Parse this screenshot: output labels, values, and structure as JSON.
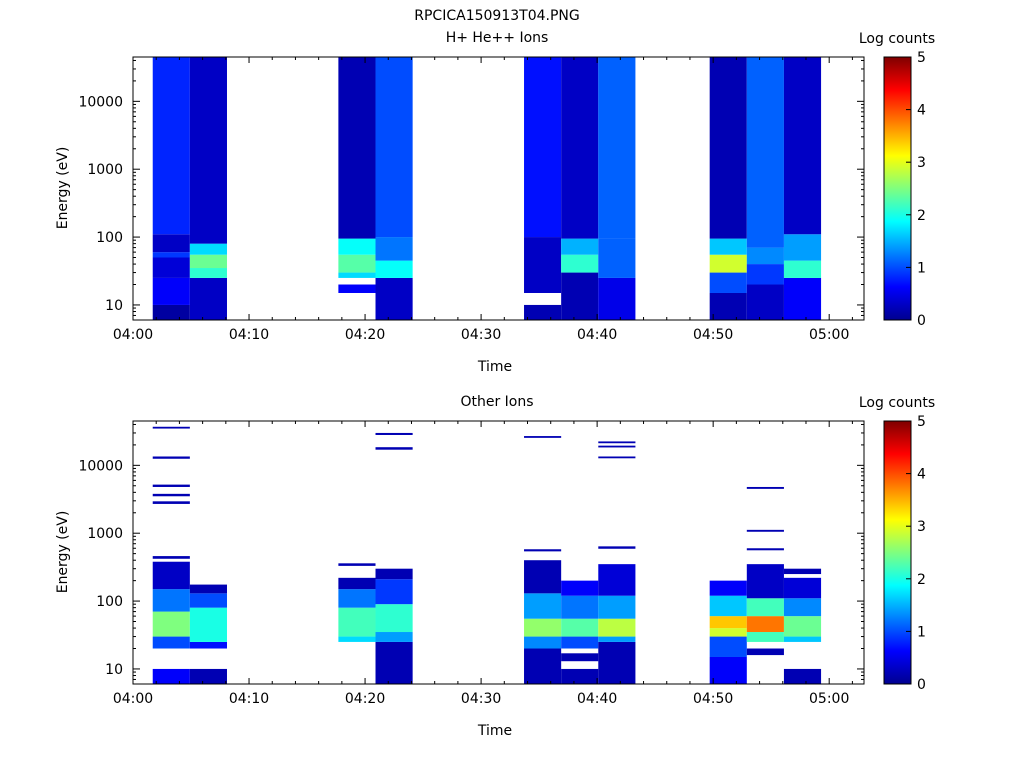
{
  "figure_title": "RPCICA150913T04.PNG",
  "colorscale": {
    "stops": [
      "#00008f",
      "#0000ff",
      "#007fff",
      "#00ffff",
      "#7fff7f",
      "#ffff00",
      "#ff7f00",
      "#ff0000",
      "#7f0000"
    ]
  },
  "chart_data": [
    {
      "type": "heatmap",
      "title": "H+ He++ Ions",
      "xlabel": "Time",
      "ylabel": "Energy (eV)",
      "y_scale": "log",
      "xlim": [
        "04:00",
        "05:03"
      ],
      "ylim": [
        6,
        45000
      ],
      "x_ticks": [
        "04:00",
        "04:10",
        "04:20",
        "04:30",
        "04:40",
        "04:50",
        "05:00"
      ],
      "y_ticks": [
        "10",
        "100",
        "1000",
        "10000"
      ],
      "colorbar": {
        "label": "Log counts",
        "range": [
          0,
          5
        ],
        "ticks": [
          "0",
          "1",
          "2",
          "3",
          "4",
          "5"
        ]
      },
      "columns": [
        {
          "start": "04:01.7",
          "end": "04:04.9",
          "rows": [
            {
              "e_min": 6,
              "e_max": 10,
              "v": 0.1
            },
            {
              "e_min": 10,
              "e_max": 25,
              "v": 0.6
            },
            {
              "e_min": 25,
              "e_max": 50,
              "v": 0.4
            },
            {
              "e_min": 50,
              "e_max": 60,
              "v": 0.9
            },
            {
              "e_min": 60,
              "e_max": 110,
              "v": 0.3
            },
            {
              "e_min": 110,
              "e_max": 45000,
              "v": 0.8
            }
          ]
        },
        {
          "start": "04:04.9",
          "end": "04:08.1",
          "rows": [
            {
              "e_min": 6,
              "e_max": 25,
              "v": 0.3
            },
            {
              "e_min": 25,
              "e_max": 35,
              "v": 2.1
            },
            {
              "e_min": 35,
              "e_max": 55,
              "v": 2.4
            },
            {
              "e_min": 55,
              "e_max": 80,
              "v": 1.7
            },
            {
              "e_min": 80,
              "e_max": 45000,
              "v": 0.3
            }
          ]
        },
        {
          "start": "04:17.7",
          "end": "04:20.9",
          "rows": [
            {
              "e_min": 15,
              "e_max": 20,
              "v": 0.6
            },
            {
              "e_min": 25,
              "e_max": 30,
              "v": 1.7
            },
            {
              "e_min": 30,
              "e_max": 55,
              "v": 2.3
            },
            {
              "e_min": 55,
              "e_max": 95,
              "v": 1.9
            },
            {
              "e_min": 95,
              "e_max": 45000,
              "v": 0.2
            }
          ]
        },
        {
          "start": "04:20.9",
          "end": "04:24.1",
          "rows": [
            {
              "e_min": 6,
              "e_max": 25,
              "v": 0.3
            },
            {
              "e_min": 25,
              "e_max": 45,
              "v": 1.9
            },
            {
              "e_min": 45,
              "e_max": 100,
              "v": 1.2
            },
            {
              "e_min": 100,
              "e_max": 45000,
              "v": 1.0
            }
          ]
        },
        {
          "start": "04:33.7",
          "end": "04:36.9",
          "rows": [
            {
              "e_min": 6,
              "e_max": 10,
              "v": 0.2
            },
            {
              "e_min": 15,
              "e_max": 100,
              "v": 0.3
            },
            {
              "e_min": 100,
              "e_max": 45000,
              "v": 0.7
            }
          ]
        },
        {
          "start": "04:36.9",
          "end": "04:40.1",
          "rows": [
            {
              "e_min": 6,
              "e_max": 30,
              "v": 0.2
            },
            {
              "e_min": 30,
              "e_max": 55,
              "v": 2.1
            },
            {
              "e_min": 55,
              "e_max": 95,
              "v": 1.5
            },
            {
              "e_min": 95,
              "e_max": 45000,
              "v": 0.3
            }
          ]
        },
        {
          "start": "04:40.1",
          "end": "04:43.3",
          "rows": [
            {
              "e_min": 6,
              "e_max": 25,
              "v": 0.5
            },
            {
              "e_min": 25,
              "e_max": 95,
              "v": 1.1
            },
            {
              "e_min": 95,
              "e_max": 45000,
              "v": 1.1
            }
          ]
        },
        {
          "start": "04:49.7",
          "end": "04:52.9",
          "rows": [
            {
              "e_min": 6,
              "e_max": 15,
              "v": 0.2
            },
            {
              "e_min": 15,
              "e_max": 30,
              "v": 1.0
            },
            {
              "e_min": 30,
              "e_max": 55,
              "v": 2.9
            },
            {
              "e_min": 55,
              "e_max": 95,
              "v": 1.6
            },
            {
              "e_min": 95,
              "e_max": 45000,
              "v": 0.2
            }
          ]
        },
        {
          "start": "04:52.9",
          "end": "04:56.1",
          "rows": [
            {
              "e_min": 6,
              "e_max": 20,
              "v": 0.3
            },
            {
              "e_min": 20,
              "e_max": 40,
              "v": 0.9
            },
            {
              "e_min": 40,
              "e_max": 70,
              "v": 1.3
            },
            {
              "e_min": 70,
              "e_max": 45000,
              "v": 1.1
            }
          ]
        },
        {
          "start": "04:56.1",
          "end": "04:59.3",
          "rows": [
            {
              "e_min": 6,
              "e_max": 25,
              "v": 0.6
            },
            {
              "e_min": 25,
              "e_max": 45,
              "v": 2.1
            },
            {
              "e_min": 45,
              "e_max": 110,
              "v": 1.4
            },
            {
              "e_min": 110,
              "e_max": 45000,
              "v": 0.3
            }
          ]
        }
      ]
    },
    {
      "type": "heatmap",
      "title": "Other Ions",
      "xlabel": "Time",
      "ylabel": "Energy (eV)",
      "y_scale": "log",
      "xlim": [
        "04:00",
        "05:03"
      ],
      "ylim": [
        6,
        45000
      ],
      "x_ticks": [
        "04:00",
        "04:10",
        "04:20",
        "04:30",
        "04:40",
        "04:50",
        "05:00"
      ],
      "y_ticks": [
        "10",
        "100",
        "1000",
        "10000"
      ],
      "colorbar": {
        "label": "Log counts",
        "range": [
          0,
          5
        ],
        "ticks": [
          "0",
          "1",
          "2",
          "3",
          "4",
          "5"
        ]
      },
      "columns": [
        {
          "start": "04:01.7",
          "end": "04:04.9",
          "rows": [
            {
              "e_min": 6,
              "e_max": 10,
              "v": 0.6
            },
            {
              "e_min": 20,
              "e_max": 30,
              "v": 1.0
            },
            {
              "e_min": 30,
              "e_max": 70,
              "v": 2.5
            },
            {
              "e_min": 70,
              "e_max": 150,
              "v": 1.2
            },
            {
              "e_min": 150,
              "e_max": 380,
              "v": 0.3
            },
            {
              "e_min": 420,
              "e_max": 460,
              "v": 0.2
            },
            {
              "e_min": 2700,
              "e_max": 2950,
              "v": 0.2
            },
            {
              "e_min": 3500,
              "e_max": 3800,
              "v": 0.2
            },
            {
              "e_min": 4800,
              "e_max": 5200,
              "v": 0.2
            },
            {
              "e_min": 12500,
              "e_max": 13500,
              "v": 0.2
            },
            {
              "e_min": 35000,
              "e_max": 37000,
              "v": 0.2
            }
          ]
        },
        {
          "start": "04:04.9",
          "end": "04:08.1",
          "rows": [
            {
              "e_min": 6,
              "e_max": 10,
              "v": 0.2
            },
            {
              "e_min": 20,
              "e_max": 25,
              "v": 0.7
            },
            {
              "e_min": 25,
              "e_max": 80,
              "v": 2.0
            },
            {
              "e_min": 80,
              "e_max": 130,
              "v": 1.0
            },
            {
              "e_min": 130,
              "e_max": 175,
              "v": 0.2
            }
          ]
        },
        {
          "start": "04:17.7",
          "end": "04:20.9",
          "rows": [
            {
              "e_min": 25,
              "e_max": 30,
              "v": 1.7
            },
            {
              "e_min": 30,
              "e_max": 80,
              "v": 2.2
            },
            {
              "e_min": 80,
              "e_max": 150,
              "v": 1.2
            },
            {
              "e_min": 150,
              "e_max": 220,
              "v": 0.2
            },
            {
              "e_min": 330,
              "e_max": 360,
              "v": 0.2
            }
          ]
        },
        {
          "start": "04:20.9",
          "end": "04:24.1",
          "rows": [
            {
              "e_min": 6,
              "e_max": 25,
              "v": 0.2
            },
            {
              "e_min": 25,
              "e_max": 35,
              "v": 1.4
            },
            {
              "e_min": 35,
              "e_max": 90,
              "v": 2.1
            },
            {
              "e_min": 90,
              "e_max": 210,
              "v": 0.9
            },
            {
              "e_min": 210,
              "e_max": 300,
              "v": 0.2
            },
            {
              "e_min": 17000,
              "e_max": 18500,
              "v": 0.2
            },
            {
              "e_min": 28000,
              "e_max": 30000,
              "v": 0.2
            }
          ]
        },
        {
          "start": "04:33.7",
          "end": "04:36.9",
          "rows": [
            {
              "e_min": 6,
              "e_max": 20,
              "v": 0.2
            },
            {
              "e_min": 20,
              "e_max": 30,
              "v": 1.3
            },
            {
              "e_min": 30,
              "e_max": 55,
              "v": 2.6
            },
            {
              "e_min": 55,
              "e_max": 130,
              "v": 1.4
            },
            {
              "e_min": 130,
              "e_max": 400,
              "v": 0.2
            },
            {
              "e_min": 540,
              "e_max": 580,
              "v": 0.2
            },
            {
              "e_min": 25500,
              "e_max": 27000,
              "v": 0.2
            }
          ]
        },
        {
          "start": "04:36.9",
          "end": "04:40.1",
          "rows": [
            {
              "e_min": 6,
              "e_max": 10,
              "v": 0.2
            },
            {
              "e_min": 13,
              "e_max": 17,
              "v": 0.2
            },
            {
              "e_min": 20,
              "e_max": 30,
              "v": 1.0
            },
            {
              "e_min": 30,
              "e_max": 55,
              "v": 2.3
            },
            {
              "e_min": 55,
              "e_max": 120,
              "v": 1.2
            },
            {
              "e_min": 120,
              "e_max": 200,
              "v": 0.6
            }
          ]
        },
        {
          "start": "04:40.1",
          "end": "04:43.3",
          "rows": [
            {
              "e_min": 6,
              "e_max": 25,
              "v": 0.2
            },
            {
              "e_min": 25,
              "e_max": 30,
              "v": 1.4
            },
            {
              "e_min": 30,
              "e_max": 55,
              "v": 2.8
            },
            {
              "e_min": 55,
              "e_max": 120,
              "v": 1.4
            },
            {
              "e_min": 120,
              "e_max": 350,
              "v": 0.4
            },
            {
              "e_min": 590,
              "e_max": 640,
              "v": 0.2
            },
            {
              "e_min": 12700,
              "e_max": 13500,
              "v": 0.2
            },
            {
              "e_min": 18500,
              "e_max": 19500,
              "v": 0.2
            },
            {
              "e_min": 21500,
              "e_max": 22500,
              "v": 0.2
            }
          ]
        },
        {
          "start": "04:49.7",
          "end": "04:52.9",
          "rows": [
            {
              "e_min": 6,
              "e_max": 15,
              "v": 0.6
            },
            {
              "e_min": 15,
              "e_max": 30,
              "v": 1.0
            },
            {
              "e_min": 30,
              "e_max": 40,
              "v": 2.9
            },
            {
              "e_min": 40,
              "e_max": 60,
              "v": 3.4
            },
            {
              "e_min": 60,
              "e_max": 120,
              "v": 1.6
            },
            {
              "e_min": 120,
              "e_max": 200,
              "v": 0.6
            }
          ]
        },
        {
          "start": "04:52.9",
          "end": "04:56.1",
          "rows": [
            {
              "e_min": 16,
              "e_max": 20,
              "v": 0.2
            },
            {
              "e_min": 25,
              "e_max": 35,
              "v": 2.2
            },
            {
              "e_min": 35,
              "e_max": 60,
              "v": 3.8
            },
            {
              "e_min": 60,
              "e_max": 110,
              "v": 2.2
            },
            {
              "e_min": 110,
              "e_max": 350,
              "v": 0.3
            },
            {
              "e_min": 560,
              "e_max": 600,
              "v": 0.2
            },
            {
              "e_min": 1050,
              "e_max": 1120,
              "v": 0.2
            },
            {
              "e_min": 4500,
              "e_max": 4800,
              "v": 0.2
            }
          ]
        },
        {
          "start": "04:56.1",
          "end": "04:59.3",
          "rows": [
            {
              "e_min": 6,
              "e_max": 10,
              "v": 0.2
            },
            {
              "e_min": 25,
              "e_max": 30,
              "v": 1.6
            },
            {
              "e_min": 30,
              "e_max": 60,
              "v": 2.4
            },
            {
              "e_min": 60,
              "e_max": 110,
              "v": 1.3
            },
            {
              "e_min": 110,
              "e_max": 220,
              "v": 0.4
            },
            {
              "e_min": 250,
              "e_max": 300,
              "v": 0.2
            }
          ]
        }
      ]
    }
  ]
}
